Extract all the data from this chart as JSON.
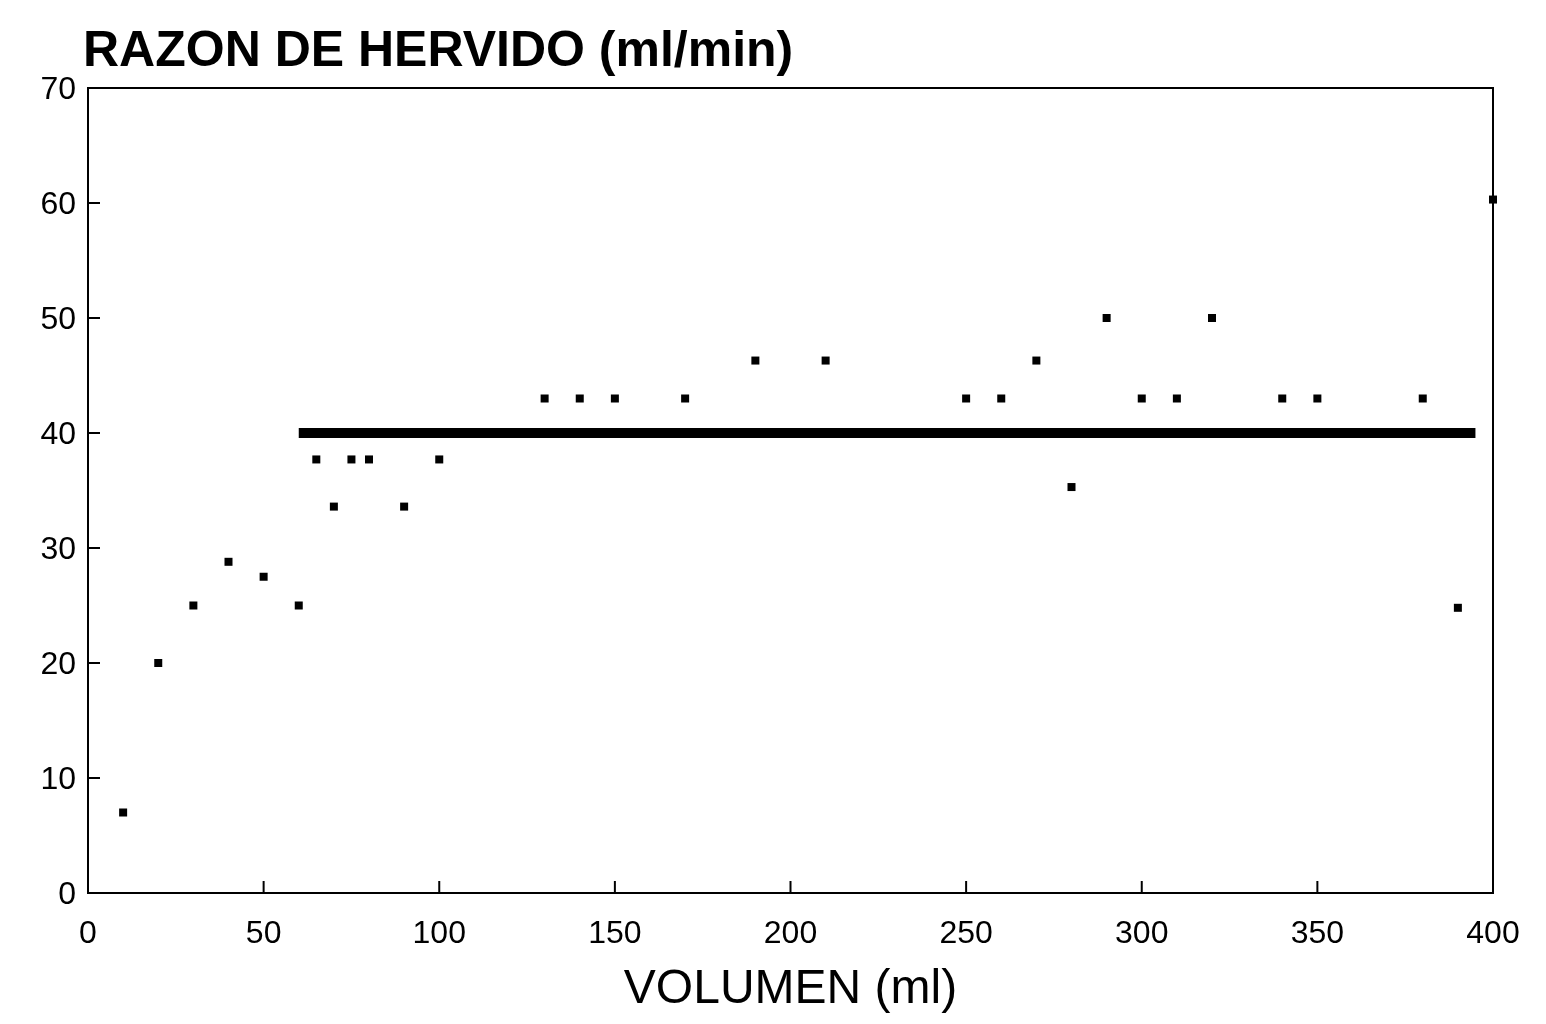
{
  "chart_data": {
    "type": "scatter",
    "title": "RAZON DE HERVIDO (ml/min)",
    "xlabel": "VOLUMEN (ml)",
    "xlim": [
      0,
      400
    ],
    "xticks": [
      0,
      50,
      100,
      150,
      200,
      250,
      300,
      350,
      400
    ],
    "ylim": [
      0,
      70
    ],
    "yticks": [
      0,
      10,
      20,
      30,
      40,
      50,
      60,
      70
    ],
    "grid": false,
    "marker": "square",
    "series": [
      {
        "type": "scatter",
        "color": "#000000",
        "x": [
          10,
          20,
          30,
          40,
          50,
          60,
          65,
          70,
          75,
          80,
          90,
          100,
          130,
          140,
          150,
          170,
          190,
          210,
          250,
          260,
          270,
          280,
          290,
          300,
          310,
          320,
          340,
          350,
          380,
          390,
          400
        ],
        "values": [
          7,
          20,
          25,
          28.8,
          27.5,
          25,
          37.7,
          33.6,
          37.7,
          37.7,
          33.6,
          37.7,
          43,
          43,
          43,
          43,
          46.3,
          46.3,
          43,
          43,
          46.3,
          35.3,
          50,
          43,
          43,
          50,
          43,
          43,
          43,
          24.8,
          60.3
        ]
      },
      {
        "type": "line",
        "color": "#000000",
        "line_style": "solid",
        "marker": "none",
        "x": [
          60,
          395
        ],
        "values": [
          40,
          40
        ]
      }
    ]
  }
}
